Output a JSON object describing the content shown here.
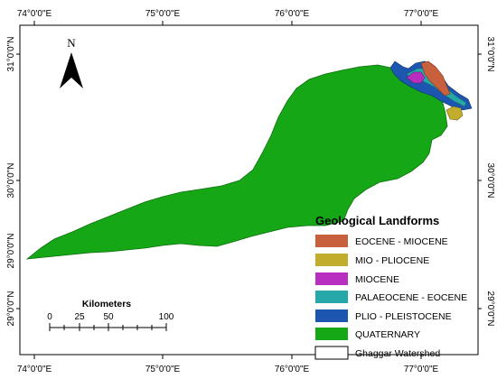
{
  "axes": {
    "top_ticks": [
      "74°0'0\"E",
      "75°0'0\"E",
      "76°0'0\"E",
      "77°0'0\"E"
    ],
    "bottom_ticks": [
      "74°0'0\"E",
      "75°0'0\"E",
      "76°0'0\"E",
      "77°0'0\"E"
    ],
    "left_ticks": [
      "31°0'0\"N",
      "30°0'0\"N",
      "29°0'0\"N",
      "29°0'0\"N"
    ],
    "right_ticks": [
      "31°0'0\"N",
      "30°0'0\"N",
      "29°0'0\"N"
    ]
  },
  "north_arrow": {
    "label": "N"
  },
  "scale_bar": {
    "title": "Kilometers",
    "labels": [
      "0",
      "25",
      "50",
      "100"
    ]
  },
  "legend": {
    "title": "Geological Landforms",
    "items": [
      {
        "label": "EOCENE - MIOCENE",
        "color": "#c8603e"
      },
      {
        "label": "MIO - PLIOCENE",
        "color": "#c2ad2c"
      },
      {
        "label": "MIOCENE",
        "color": "#b82fbf"
      },
      {
        "label": "PALAEOCENE - EOCENE",
        "color": "#27a8a8"
      },
      {
        "label": "PLIO - PLEISTOCENE",
        "color": "#1c56b0"
      },
      {
        "label": "QUATERNARY",
        "color": "#16a716"
      },
      {
        "label": "Ghaggar Watershed",
        "color": "#ffffff"
      }
    ]
  }
}
